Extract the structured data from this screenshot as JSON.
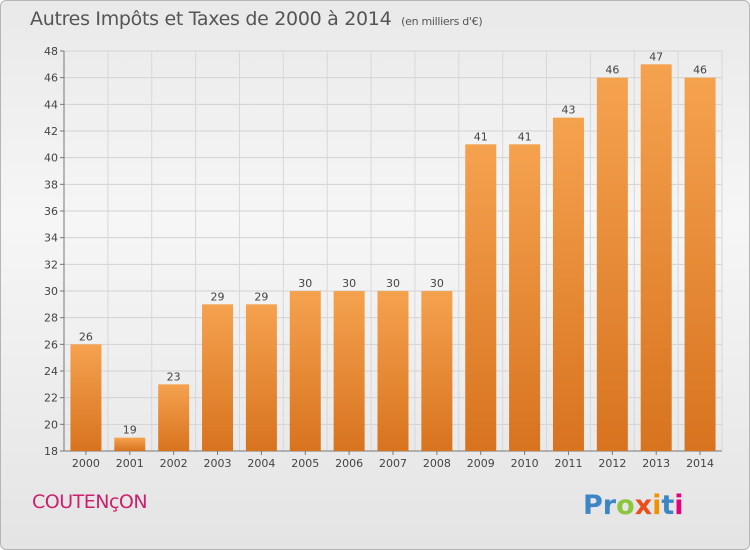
{
  "header": {
    "title": "Autres Impôts et Taxes de 2000 à 2014",
    "subtitle": "(en milliers d'€)"
  },
  "footer": {
    "commune": "COUTENçON",
    "logo": [
      "P",
      "r",
      "o",
      "x",
      "i",
      "t",
      "i"
    ]
  },
  "colors": {
    "bar_light": "#f5a24f",
    "bar_dark": "#d8731e",
    "commune": "#cc1f6e",
    "logo": [
      "#3d86c6",
      "#3d86c6",
      "#8cc63f",
      "#e94e1b",
      "#f39200",
      "#3d86c6",
      "#e6007e"
    ]
  },
  "chart_data": {
    "type": "bar",
    "title": "Autres Impôts et Taxes de 2000 à 2014",
    "subtitle": "(en milliers d'€)",
    "categories": [
      "2000",
      "2001",
      "2002",
      "2003",
      "2004",
      "2005",
      "2006",
      "2007",
      "2008",
      "2009",
      "2010",
      "2011",
      "2012",
      "2013",
      "2014"
    ],
    "values": [
      26,
      19,
      23,
      29,
      29,
      30,
      30,
      30,
      30,
      41,
      41,
      43,
      46,
      47,
      46
    ],
    "ylim": [
      18,
      48
    ],
    "yticks": [
      18,
      20,
      22,
      24,
      26,
      28,
      30,
      32,
      34,
      36,
      38,
      40,
      42,
      44,
      46,
      48
    ],
    "grid": true,
    "xlabel": "",
    "ylabel": ""
  }
}
